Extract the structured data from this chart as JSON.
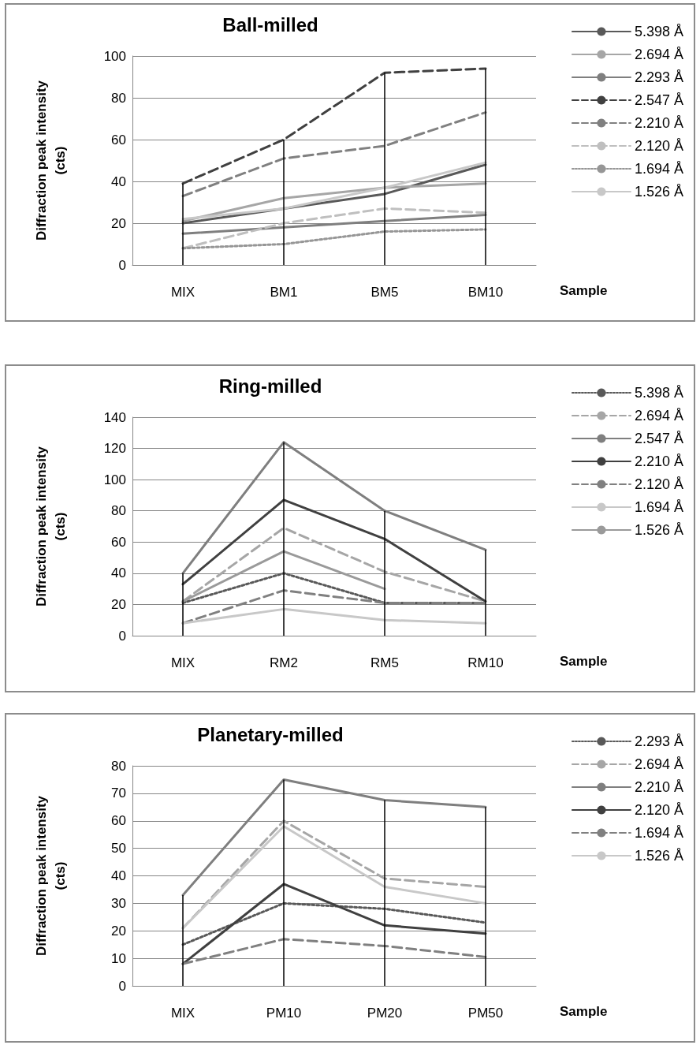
{
  "chart_data": [
    {
      "type": "line",
      "title": "Ball-milled",
      "xlabel": "Sample",
      "ylabel": "Diffraction peak intensity\n(cts)",
      "categories": [
        "MIX",
        "BM1",
        "BM5",
        "BM10"
      ],
      "ylim": [
        0,
        100
      ],
      "yticks": [
        0,
        20,
        40,
        60,
        80,
        100
      ],
      "grid": "y",
      "legend": "right",
      "marker": "none",
      "ref_lines": [
        {
          "axis": "x",
          "value": "MIX",
          "color": "#000000"
        },
        {
          "axis": "x",
          "value": "BM1",
          "color": "#000000"
        },
        {
          "axis": "x",
          "value": "BM5",
          "color": "#000000"
        },
        {
          "axis": "x",
          "value": "BM10",
          "color": "#000000"
        }
      ],
      "series": [
        {
          "name": "5.398 Å",
          "color": "#595959",
          "line_style": "solid",
          "values": [
            20,
            27,
            34,
            48
          ]
        },
        {
          "name": "2.694 Å",
          "color": "#a6a6a6",
          "line_style": "solid",
          "values": [
            21,
            32,
            37,
            39
          ]
        },
        {
          "name": "2.293 Å",
          "color": "#7f7f7f",
          "line_style": "solid",
          "values": [
            15,
            18,
            21,
            24
          ]
        },
        {
          "name": "2.547 Å",
          "color": "#404040",
          "line_style": "dashed",
          "values": [
            39,
            60,
            92,
            94
          ]
        },
        {
          "name": "2.210 Å",
          "color": "#808080",
          "line_style": "dashed",
          "values": [
            33,
            51,
            57,
            73
          ]
        },
        {
          "name": "2.120 Å",
          "color": "#bfbfbf",
          "line_style": "dashed",
          "values": [
            8,
            20,
            27,
            25
          ]
        },
        {
          "name": "1.694 Å",
          "color": "#969696",
          "line_style": "dotted",
          "values": [
            8,
            10,
            16,
            17
          ]
        },
        {
          "name": "1.526 Å",
          "color": "#c8c8c8",
          "line_style": "solid",
          "values": [
            22,
            27,
            37,
            49
          ]
        }
      ]
    },
    {
      "type": "line",
      "title": "Ring-milled",
      "xlabel": "Sample",
      "ylabel": "Diffraction peak intensity\n(cts)",
      "categories": [
        "MIX",
        "RM2",
        "RM5",
        "RM10"
      ],
      "ylim": [
        0,
        140
      ],
      "yticks": [
        0,
        20,
        40,
        60,
        80,
        100,
        120,
        140
      ],
      "grid": "y",
      "legend": "right",
      "marker": "none",
      "ref_lines": [
        {
          "axis": "x",
          "value": "MIX",
          "color": "#000000"
        },
        {
          "axis": "x",
          "value": "RM2",
          "color": "#000000"
        },
        {
          "axis": "x",
          "value": "RM5",
          "color": "#000000"
        },
        {
          "axis": "x",
          "value": "RM10",
          "color": "#000000"
        }
      ],
      "series": [
        {
          "name": "5.398 Å",
          "color": "#595959",
          "line_style": "dotted",
          "values": [
            21,
            40,
            21,
            21
          ]
        },
        {
          "name": "2.694 Å",
          "color": "#a6a6a6",
          "line_style": "dashed",
          "values": [
            22,
            69,
            41,
            22
          ]
        },
        {
          "name": "2.547 Å",
          "color": "#7f7f7f",
          "line_style": "solid",
          "values": [
            40,
            124,
            80,
            55
          ]
        },
        {
          "name": "2.210 Å",
          "color": "#404040",
          "line_style": "solid",
          "values": [
            33,
            87,
            62,
            22
          ]
        },
        {
          "name": "2.120 Å",
          "color": "#808080",
          "line_style": "dashed",
          "values": [
            8,
            29,
            21,
            21
          ]
        },
        {
          "name": "1.694 Å",
          "color": "#c8c8c8",
          "line_style": "solid",
          "values": [
            8,
            17,
            10,
            8
          ]
        },
        {
          "name": "1.526 Å",
          "color": "#9a9a9a",
          "line_style": "solid",
          "values": [
            22,
            54,
            30,
            null
          ]
        }
      ]
    },
    {
      "type": "line",
      "title": "Planetary-milled",
      "xlabel": "Sample",
      "ylabel": "Diffraction peak intensity\n(cts)",
      "categories": [
        "MIX",
        "PM10",
        "PM20",
        "PM50"
      ],
      "ylim": [
        0,
        80
      ],
      "yticks": [
        0,
        10,
        20,
        30,
        40,
        50,
        60,
        70,
        80
      ],
      "grid": "y",
      "legend": "right",
      "marker": "none",
      "ref_lines": [
        {
          "axis": "x",
          "value": "MIX",
          "color": "#000000"
        },
        {
          "axis": "x",
          "value": "PM10",
          "color": "#000000"
        },
        {
          "axis": "x",
          "value": "PM20",
          "color": "#000000"
        },
        {
          "axis": "x",
          "value": "PM50",
          "color": "#000000"
        }
      ],
      "series": [
        {
          "name": "2.293 Å",
          "color": "#595959",
          "line_style": "dotted",
          "values": [
            15,
            30,
            28,
            23
          ]
        },
        {
          "name": "2.694 Å",
          "color": "#a6a6a6",
          "line_style": "dashed",
          "values": [
            21,
            60,
            39,
            36
          ]
        },
        {
          "name": "2.210 Å",
          "color": "#7f7f7f",
          "line_style": "solid",
          "values": [
            33,
            75,
            67.5,
            65
          ]
        },
        {
          "name": "2.120 Å",
          "color": "#404040",
          "line_style": "solid",
          "values": [
            8,
            37,
            22,
            19
          ]
        },
        {
          "name": "1.694 Å",
          "color": "#808080",
          "line_style": "dashed",
          "values": [
            8,
            17,
            14.5,
            10.5
          ]
        },
        {
          "name": "1.526 Å",
          "color": "#c8c8c8",
          "line_style": "solid",
          "values": [
            21,
            58,
            36,
            30
          ]
        }
      ]
    }
  ]
}
